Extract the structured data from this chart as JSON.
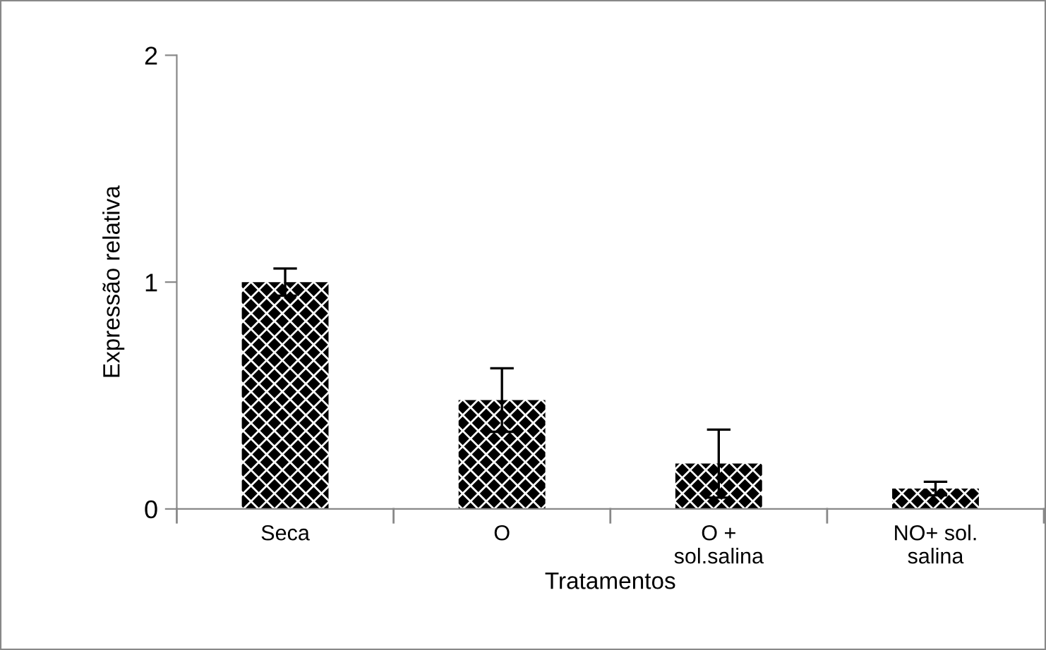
{
  "chart_data": {
    "type": "bar",
    "xlabel": "Tratamentos",
    "ylabel": "Expressão relativa",
    "categories": [
      "Seca",
      "O",
      "O +\nsol.salina",
      "NO+ sol.\nsalina"
    ],
    "values": [
      1.0,
      0.48,
      0.2,
      0.09
    ],
    "errors": [
      0.06,
      0.14,
      0.15,
      0.03
    ],
    "color": "#000000",
    "ylim": [
      0,
      2
    ],
    "yticks": [
      0,
      1,
      2
    ],
    "grid": false
  }
}
